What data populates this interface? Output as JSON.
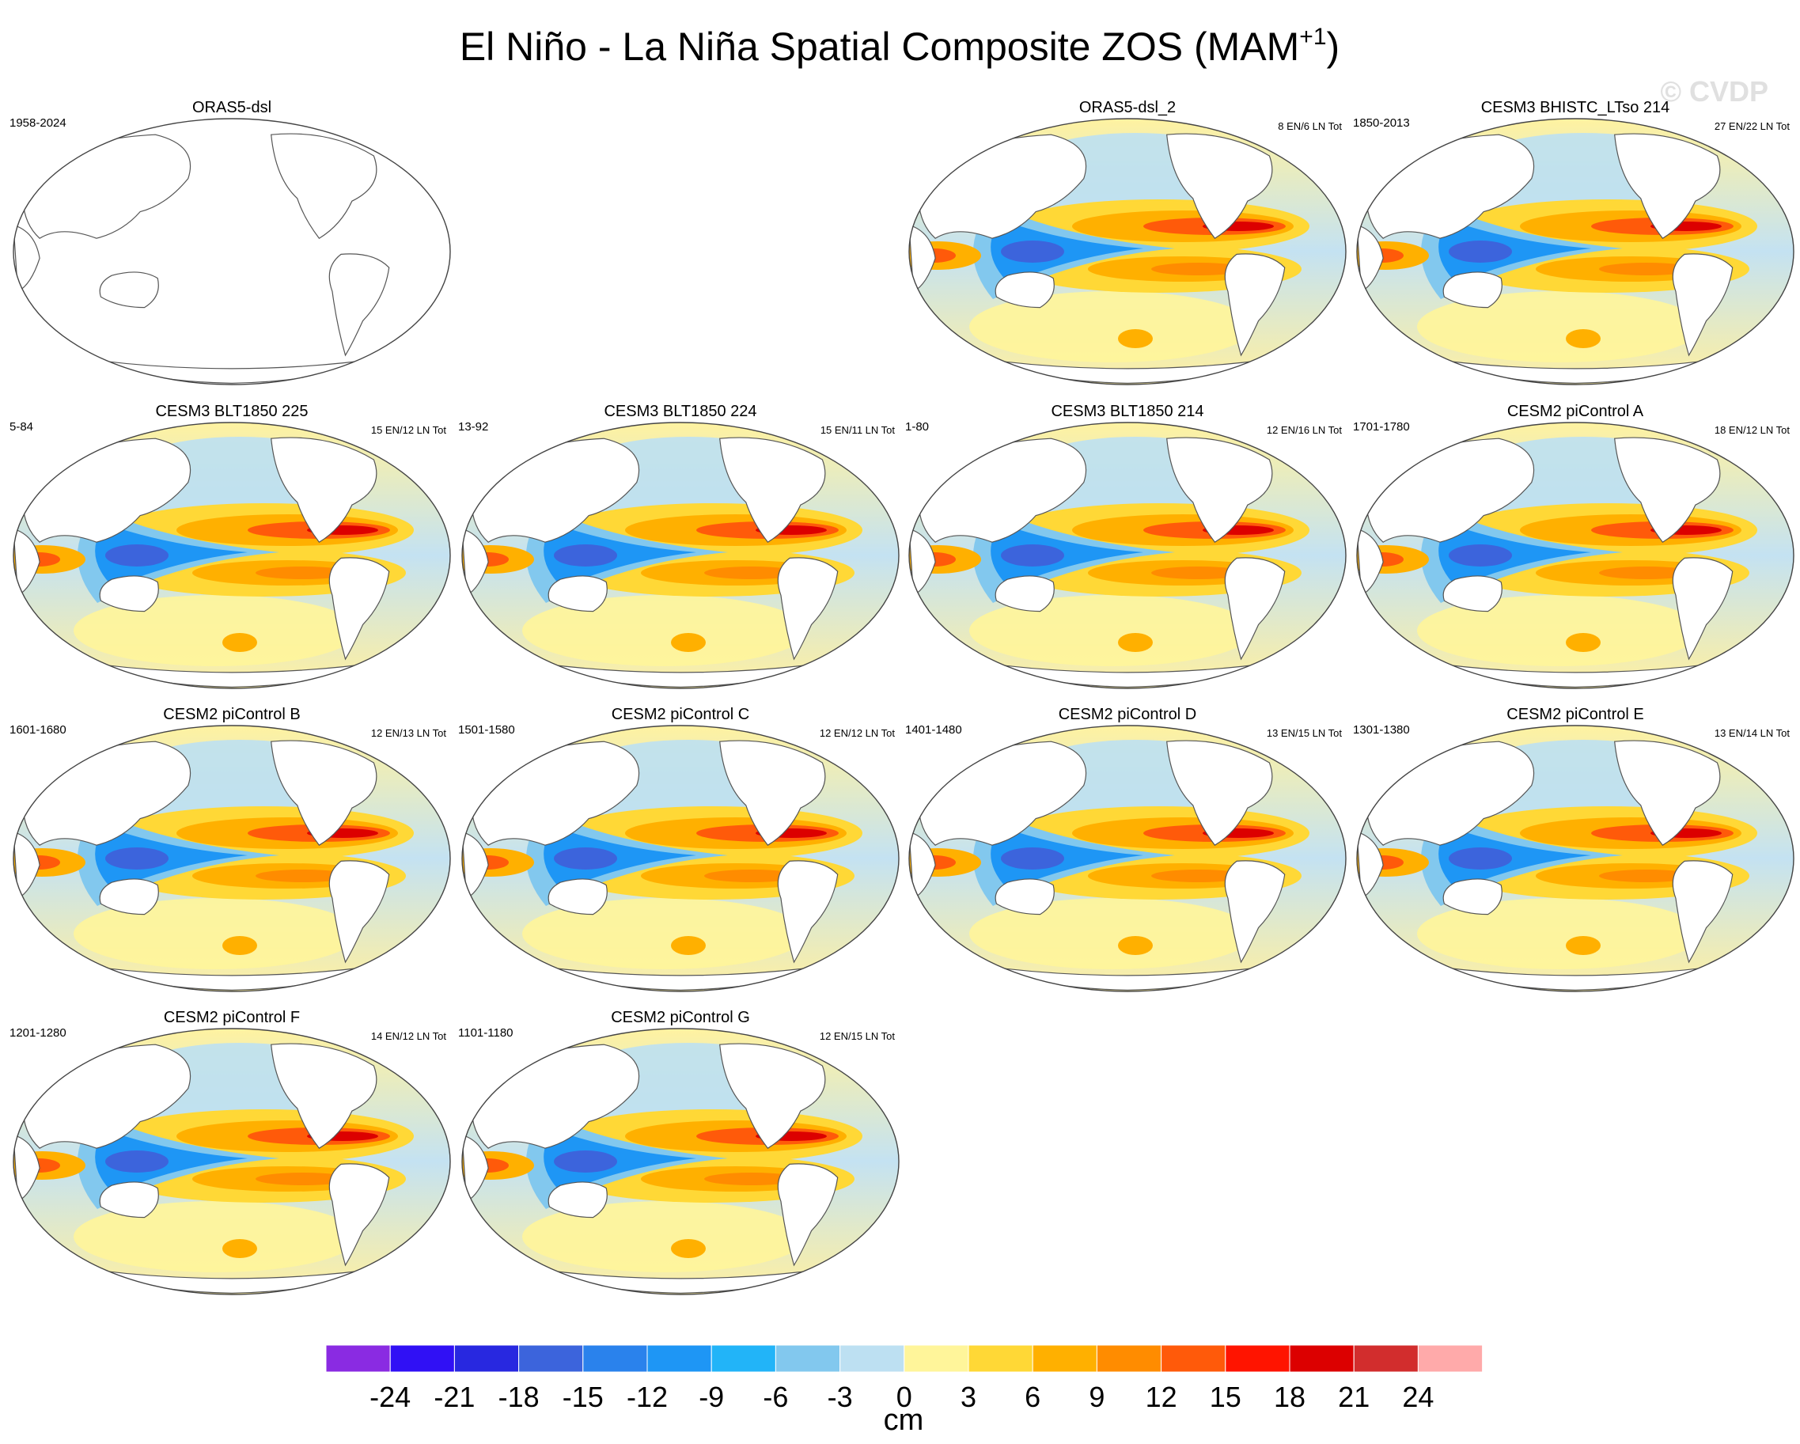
{
  "title": {
    "main": "El Niño - La Niña Spatial Composite ZOS (MAM",
    "sup": "+1",
    "close": ")"
  },
  "watermark": "© CVDP",
  "panels": [
    {
      "title": "ORAS5-dsl",
      "years": "1958-2024",
      "counts": "",
      "filled": false
    },
    {
      "title": "ORAS5-dsl_2",
      "years": "",
      "counts": "8 EN/6 LN Tot",
      "filled": true
    },
    {
      "title": "CESM3 BHISTC_LTso 214",
      "years": "1850-2013",
      "counts": "27 EN/22 LN Tot",
      "filled": true
    },
    {
      "title": "CESM3 BLT1850 225",
      "years": "5-84",
      "counts": "15 EN/12 LN Tot",
      "filled": true
    },
    {
      "title": "CESM3 BLT1850 224",
      "years": "13-92",
      "counts": "15 EN/11 LN Tot",
      "filled": true
    },
    {
      "title": "CESM3 BLT1850 214",
      "years": "1-80",
      "counts": "12 EN/16 LN Tot",
      "filled": true
    },
    {
      "title": "CESM2 piControl A",
      "years": "1701-1780",
      "counts": "18 EN/12 LN Tot",
      "filled": true
    },
    {
      "title": "CESM2 piControl B",
      "years": "1601-1680",
      "counts": "12 EN/13 LN Tot",
      "filled": true
    },
    {
      "title": "CESM2 piControl C",
      "years": "1501-1580",
      "counts": "12 EN/12 LN Tot",
      "filled": true
    },
    {
      "title": "CESM2 piControl D",
      "years": "1401-1480",
      "counts": "13 EN/15 LN Tot",
      "filled": true
    },
    {
      "title": "CESM2 piControl E",
      "years": "1301-1380",
      "counts": "13 EN/14 LN Tot",
      "filled": true
    },
    {
      "title": "CESM2 piControl F",
      "years": "1201-1280",
      "counts": "14 EN/12 LN Tot",
      "filled": true
    },
    {
      "title": "CESM2 piControl G",
      "years": "1101-1180",
      "counts": "12 EN/15 LN Tot",
      "filled": true
    }
  ],
  "colorbar": {
    "labels": [
      "-24",
      "-21",
      "-18",
      "-15",
      "-12",
      "-9",
      "-6",
      "-3",
      "0",
      "3",
      "6",
      "9",
      "12",
      "15",
      "18",
      "21",
      "24"
    ],
    "colors": [
      "#8a2be2",
      "#3010f5",
      "#2828e0",
      "#3c64dc",
      "#2a82ec",
      "#1e96f5",
      "#22b4f8",
      "#82c8ee",
      "#bde0f2",
      "#fff59a",
      "#ffd836",
      "#ffb000",
      "#ff8c00",
      "#ff5a0a",
      "#ff1400",
      "#dc0000",
      "#d22d2d",
      "#ffaaaa"
    ],
    "unit": "cm"
  }
}
